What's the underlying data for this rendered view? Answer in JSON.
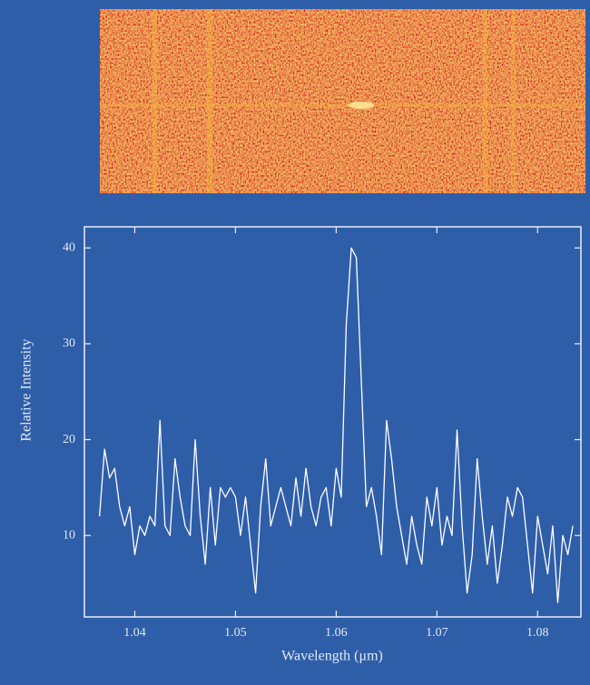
{
  "chart_data": {
    "type": "line",
    "xlabel": "Wavelength (μm)",
    "ylabel": "Relative Intensity",
    "x": [
      1.0365,
      1.037,
      1.0375,
      1.038,
      1.0385,
      1.039,
      1.0395,
      1.04,
      1.0405,
      1.041,
      1.0415,
      1.042,
      1.0425,
      1.043,
      1.0435,
      1.044,
      1.0445,
      1.045,
      1.0455,
      1.046,
      1.0465,
      1.047,
      1.0475,
      1.048,
      1.0485,
      1.049,
      1.0495,
      1.05,
      1.0505,
      1.051,
      1.0515,
      1.052,
      1.0525,
      1.053,
      1.0535,
      1.054,
      1.0545,
      1.055,
      1.0555,
      1.056,
      1.0565,
      1.057,
      1.0575,
      1.058,
      1.0585,
      1.059,
      1.0595,
      1.06,
      1.0605,
      1.061,
      1.0615,
      1.062,
      1.0625,
      1.063,
      1.0635,
      1.064,
      1.0645,
      1.065,
      1.0655,
      1.066,
      1.0665,
      1.067,
      1.0675,
      1.068,
      1.0685,
      1.069,
      1.0695,
      1.07,
      1.0705,
      1.071,
      1.0715,
      1.072,
      1.0725,
      1.073,
      1.0735,
      1.074,
      1.0745,
      1.075,
      1.0755,
      1.076,
      1.0765,
      1.077,
      1.0775,
      1.078,
      1.0785,
      1.079,
      1.0795,
      1.08,
      1.0805,
      1.081,
      1.0815,
      1.082,
      1.0825,
      1.083,
      1.0835
    ],
    "series": [
      {
        "color": "#ffffff",
        "values": [
          12,
          19,
          16,
          17,
          13,
          11,
          13,
          8,
          11,
          10,
          12,
          11,
          22,
          11,
          10,
          18,
          14,
          11,
          10,
          20,
          12,
          7,
          15,
          9,
          15,
          14,
          15,
          14,
          10,
          14,
          9,
          4,
          13,
          18,
          11,
          13,
          15,
          13,
          11,
          16,
          12,
          17,
          13,
          11,
          14,
          15,
          11,
          17,
          14,
          32,
          40,
          39,
          26,
          13,
          15,
          12,
          8,
          22,
          18,
          13,
          10,
          7,
          12,
          9,
          7,
          14,
          11,
          15,
          9,
          12,
          10,
          21,
          11,
          4,
          8,
          18,
          12,
          7,
          11,
          5,
          9,
          14,
          12,
          15,
          14,
          9,
          4,
          12,
          9,
          6,
          11,
          3,
          10,
          8,
          11
        ]
      }
    ],
    "xlim": [
      1.035,
      1.0843
    ],
    "ylim": [
      1.5,
      42.2
    ],
    "xticks": [
      1.04,
      1.05,
      1.06,
      1.07,
      1.08
    ],
    "yticks": [
      10,
      20,
      30,
      40
    ]
  }
}
